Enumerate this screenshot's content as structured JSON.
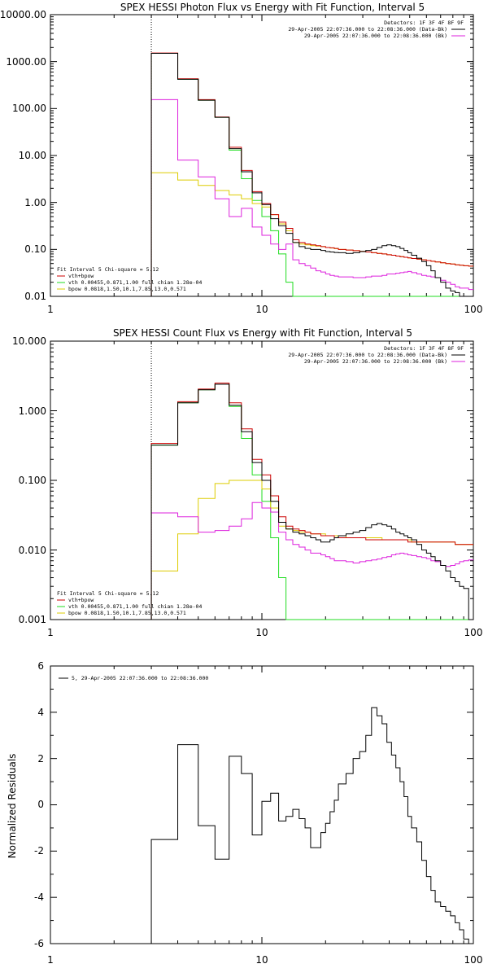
{
  "colors": {
    "data": "#000000",
    "total": "#cc0000",
    "vth": "#22dd22",
    "bpow": "#ddcc00",
    "background": "#dd22dd",
    "marker": "#000000"
  },
  "chart_data": [
    {
      "type": "line",
      "title": "SPEX HESSI Photon Flux vs Energy with Fit Function, Interval 5",
      "xscale": "log",
      "yscale": "log",
      "xlim": [
        1,
        100
      ],
      "ylim": [
        0.01,
        10000
      ],
      "yticks": [
        "0.01",
        "0.10",
        "1.00",
        "10.00",
        "100.00",
        "1000.00",
        "10000.00"
      ],
      "xticks": [
        "1",
        "10",
        "100"
      ],
      "header_right": [
        "Detectors: 1F 3F 4F 8F 9F",
        "29-Apr-2005 22:07:36.000 to 22:08:36.000 (Data-Bk)",
        "29-Apr-2005 22:07:36.000 to 22:08:36.000 (Bk)"
      ],
      "legend": [
        "Fit Interval 5   Chi-square = 5.12",
        "vth+bpow",
        "vth 0.00455,0.871,1.00  full chian 1.28e-04",
        "bpow 0.0818,1.50,10.1,7.85,13.0,0.571"
      ],
      "marker_x": 3,
      "edges": [
        3,
        4,
        5,
        6,
        7,
        8,
        9,
        10,
        11,
        12,
        13,
        14,
        15,
        16,
        17,
        18,
        19,
        20,
        21,
        22,
        23,
        25,
        27,
        29,
        31,
        33,
        35,
        37,
        39,
        41,
        43,
        45,
        47,
        49,
        51,
        54,
        57,
        60,
        63,
        66,
        70,
        74,
        78,
        82,
        86,
        90,
        95,
        100
      ],
      "series": [
        {
          "key": "data",
          "values": [
            1500,
            420,
            150,
            65,
            14,
            4.5,
            1.6,
            0.9,
            0.45,
            0.32,
            0.22,
            0.14,
            0.115,
            0.105,
            0.1,
            0.1,
            0.095,
            0.09,
            0.088,
            0.086,
            0.085,
            0.082,
            0.085,
            0.09,
            0.095,
            0.1,
            0.11,
            0.12,
            0.125,
            0.12,
            0.115,
            0.105,
            0.095,
            0.085,
            0.075,
            0.065,
            0.055,
            0.045,
            0.035,
            0.025,
            0.02,
            0.015,
            0.013,
            0.012,
            0.01,
            0.01,
            0.01
          ]
        },
        {
          "key": "total",
          "values": [
            1520,
            430,
            155,
            66,
            15,
            4.8,
            1.7,
            0.95,
            0.55,
            0.38,
            0.28,
            0.16,
            0.14,
            0.13,
            0.125,
            0.12,
            0.115,
            0.11,
            0.108,
            0.105,
            0.1,
            0.097,
            0.094,
            0.091,
            0.088,
            0.085,
            0.082,
            0.08,
            0.077,
            0.075,
            0.072,
            0.07,
            0.068,
            0.066,
            0.064,
            0.062,
            0.06,
            0.058,
            0.056,
            0.054,
            0.052,
            0.05,
            0.049,
            0.047,
            0.046,
            0.045,
            0.044
          ]
        },
        {
          "key": "vth",
          "values": [
            1500,
            420,
            150,
            65,
            13,
            3.2,
            1.1,
            0.5,
            0.25,
            0.08,
            0.02,
            0.01,
            0.01,
            0.01,
            0.01,
            0.01,
            0.01,
            0.01,
            0.01,
            0.01,
            0.01,
            0.01,
            0.01,
            0.01,
            0.01,
            0.01,
            0.01,
            0.01,
            0.01,
            0.01,
            0.01,
            0.01,
            0.01,
            0.01,
            0.01,
            0.01,
            0.01,
            0.01,
            0.01,
            0.01,
            0.01,
            0.01,
            0.01,
            0.01,
            0.01,
            0.01,
            0.01
          ]
        },
        {
          "key": "bpow",
          "values": [
            4.3,
            3,
            2.3,
            1.8,
            1.45,
            1.2,
            0.95,
            0.8,
            0.55,
            0.35,
            0.25,
            0.14,
            0.13,
            0.125,
            0.12,
            0.118,
            0.115,
            0.11,
            0.107,
            0.104,
            0.1,
            0.097,
            0.094,
            0.091,
            0.088,
            0.085,
            0.082,
            0.08,
            0.077,
            0.075,
            0.072,
            0.07,
            0.068,
            0.066,
            0.064,
            0.062,
            0.06,
            0.058,
            0.056,
            0.054,
            0.052,
            0.05,
            0.049,
            0.047,
            0.046,
            0.045,
            0.044
          ]
        },
        {
          "key": "background",
          "values": [
            155,
            8,
            3.5,
            1.2,
            0.5,
            0.75,
            0.3,
            0.2,
            0.13,
            0.1,
            0.13,
            0.06,
            0.05,
            0.045,
            0.04,
            0.035,
            0.033,
            0.03,
            0.028,
            0.027,
            0.026,
            0.026,
            0.025,
            0.025,
            0.026,
            0.027,
            0.027,
            0.028,
            0.03,
            0.03,
            0.031,
            0.032,
            0.033,
            0.034,
            0.032,
            0.03,
            0.028,
            0.027,
            0.026,
            0.025,
            0.022,
            0.02,
            0.018,
            0.016,
            0.015,
            0.015,
            0.014
          ]
        }
      ]
    },
    {
      "type": "line",
      "title": "SPEX HESSI Count Flux vs Energy with Fit Function, Interval 5",
      "xscale": "log",
      "yscale": "log",
      "xlim": [
        1,
        100
      ],
      "ylim": [
        0.001,
        10
      ],
      "yticks": [
        "0.001",
        "0.010",
        "0.100",
        "1.000",
        "10.000"
      ],
      "xticks": [
        "1",
        "10",
        "100"
      ],
      "header_right": [
        "Detectors: 1F 3F 4F 8F 9F",
        "29-Apr-2005 22:07:36.000 to 22:08:36.000 (Data-Bk)",
        "29-Apr-2005 22:07:36.000 to 22:08:36.000 (Bk)"
      ],
      "legend": [
        "Fit Interval 5   Chi-square = 5.12",
        "vth+bpow",
        "vth 0.00455,0.871,1.00  full chian 1.28e-04",
        "bpow 0.0818,1.50,10.1,7.85,13.0,0.571"
      ],
      "marker_x": 3,
      "edges": [
        3,
        4,
        5,
        6,
        7,
        8,
        9,
        10,
        11,
        12,
        13,
        14,
        15,
        16,
        17,
        18,
        19,
        20,
        21,
        22,
        23,
        25,
        27,
        29,
        31,
        33,
        35,
        37,
        39,
        41,
        43,
        45,
        47,
        49,
        51,
        54,
        57,
        60,
        63,
        66,
        70,
        74,
        78,
        82,
        86,
        90,
        95,
        100
      ],
      "series": [
        {
          "key": "data",
          "values": [
            0.32,
            1.3,
            2,
            2.4,
            1.2,
            0.5,
            0.18,
            0.1,
            0.05,
            0.025,
            0.02,
            0.018,
            0.017,
            0.016,
            0.015,
            0.014,
            0.013,
            0.013,
            0.014,
            0.015,
            0.016,
            0.017,
            0.018,
            0.019,
            0.021,
            0.023,
            0.024,
            0.023,
            0.022,
            0.02,
            0.018,
            0.017,
            0.016,
            0.015,
            0.014,
            0.012,
            0.01,
            0.009,
            0.008,
            0.007,
            0.006,
            0.005,
            0.004,
            0.0035,
            0.003,
            0.0028,
            0.001
          ]
        },
        {
          "key": "total",
          "values": [
            0.34,
            1.35,
            2.05,
            2.5,
            1.3,
            0.55,
            0.2,
            0.12,
            0.06,
            0.03,
            0.022,
            0.02,
            0.019,
            0.018,
            0.017,
            0.017,
            0.016,
            0.016,
            0.016,
            0.015,
            0.015,
            0.015,
            0.015,
            0.015,
            0.014,
            0.014,
            0.014,
            0.014,
            0.014,
            0.014,
            0.014,
            0.014,
            0.014,
            0.013,
            0.013,
            0.013,
            0.013,
            0.013,
            0.013,
            0.013,
            0.013,
            0.013,
            0.013,
            0.012,
            0.012,
            0.012,
            0.012
          ]
        },
        {
          "key": "vth",
          "values": [
            0.32,
            1.3,
            2,
            2.4,
            1.15,
            0.4,
            0.12,
            0.05,
            0.015,
            0.004,
            0.001,
            0.001,
            0.001,
            0.001,
            0.001,
            0.001,
            0.001,
            0.001,
            0.001,
            0.001,
            0.001,
            0.001,
            0.001,
            0.001,
            0.001,
            0.001,
            0.001,
            0.001,
            0.001,
            0.001,
            0.001,
            0.001,
            0.001,
            0.001,
            0.001,
            0.001,
            0.001,
            0.001,
            0.001,
            0.001,
            0.001,
            0.001,
            0.001,
            0.001,
            0.001,
            0.001,
            0.001
          ]
        },
        {
          "key": "bpow",
          "values": [
            0.005,
            0.017,
            0.055,
            0.09,
            0.1,
            0.1,
            0.1,
            0.075,
            0.04,
            0.022,
            0.02,
            0.019,
            0.018,
            0.018,
            0.017,
            0.017,
            0.017,
            0.016,
            0.016,
            0.016,
            0.016,
            0.015,
            0.015,
            0.015,
            0.015,
            0.015,
            0.015,
            0.014,
            0.014,
            0.014,
            0.014,
            0.014,
            0.014,
            0.014,
            0.013,
            0.013,
            0.013,
            0.013,
            0.013,
            0.013,
            0.013,
            0.013,
            0.013,
            0.012,
            0.012,
            0.012,
            0.012
          ]
        },
        {
          "key": "background",
          "values": [
            0.034,
            0.03,
            0.018,
            0.019,
            0.022,
            0.028,
            0.048,
            0.04,
            0.035,
            0.018,
            0.014,
            0.012,
            0.011,
            0.01,
            0.009,
            0.009,
            0.0085,
            0.008,
            0.0075,
            0.007,
            0.007,
            0.0068,
            0.0065,
            0.0068,
            0.007,
            0.0072,
            0.0074,
            0.0078,
            0.008,
            0.0085,
            0.0088,
            0.009,
            0.0088,
            0.0085,
            0.0083,
            0.008,
            0.0078,
            0.0075,
            0.007,
            0.0068,
            0.006,
            0.0058,
            0.006,
            0.0063,
            0.0068,
            0.007,
            0.0072
          ]
        }
      ]
    },
    {
      "type": "line",
      "xscale": "log",
      "yscale": "linear",
      "xlim": [
        1,
        100
      ],
      "ylim": [
        -6,
        6
      ],
      "ylabel": "Normalized Residuals",
      "yticks": [
        "-6",
        "-4",
        "-2",
        "0",
        "2",
        "4",
        "6"
      ],
      "xticks": [
        "1",
        "10",
        "100"
      ],
      "legend": [
        "5, 29-Apr-2005 22:07:36.000 to 22:08:36.000"
      ],
      "edges": [
        3,
        4,
        5,
        6,
        7,
        8,
        9,
        10,
        11,
        12,
        13,
        14,
        15,
        16,
        17,
        18,
        19,
        20,
        21,
        22,
        23,
        25,
        27,
        29,
        31,
        33,
        35,
        37,
        39,
        41,
        43,
        45,
        47,
        49,
        51,
        54,
        57,
        60,
        63,
        66,
        70,
        74,
        78,
        82,
        86,
        90,
        95,
        100
      ],
      "series": [
        {
          "key": "data",
          "values": [
            -1.5,
            2.6,
            -0.9,
            -2.35,
            2.1,
            1.35,
            -1.3,
            0.15,
            0.5,
            -0.7,
            -0.5,
            -0.2,
            -0.6,
            -1,
            -1.85,
            -1.85,
            -1.2,
            -0.8,
            -0.3,
            0.2,
            0.9,
            1.35,
            2,
            2.3,
            3,
            4.2,
            3.85,
            3.5,
            2.7,
            2.15,
            1.6,
            1,
            0.35,
            -0.5,
            -1,
            -1.6,
            -2.4,
            -3.1,
            -3.7,
            -4.2,
            -4.4,
            -4.6,
            -4.8,
            -5.1,
            -5.4,
            -5.8,
            -6
          ]
        }
      ]
    }
  ]
}
